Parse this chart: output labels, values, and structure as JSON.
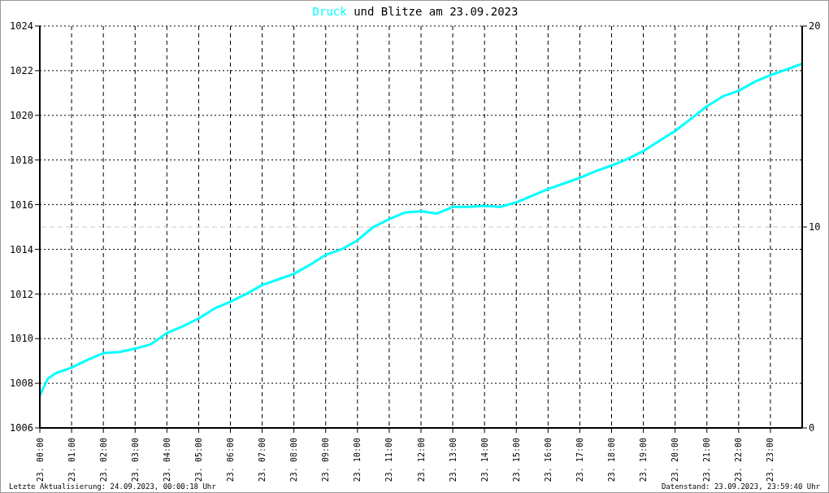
{
  "chart_data": {
    "type": "line",
    "title": "und Blitze am 23.09.2023",
    "annotations": [
      "Letzte Aktualisierung: 24.09.2023, 00:00:18 Uhr",
      "Datenstand: 23.09.2023, 23:59:40 Uhr"
    ],
    "x": [
      "2023-09-23T00:00",
      "2023-09-23T00:15",
      "2023-09-23T00:30",
      "2023-09-23T01:00",
      "2023-09-23T01:30",
      "2023-09-23T02:00",
      "2023-09-23T02:30",
      "2023-09-23T03:00",
      "2023-09-23T03:30",
      "2023-09-23T04:00",
      "2023-09-23T04:30",
      "2023-09-23T05:00",
      "2023-09-23T05:30",
      "2023-09-23T06:00",
      "2023-09-23T06:30",
      "2023-09-23T07:00",
      "2023-09-23T07:30",
      "2023-09-23T08:00",
      "2023-09-23T08:30",
      "2023-09-23T09:00",
      "2023-09-23T09:30",
      "2023-09-23T10:00",
      "2023-09-23T10:30",
      "2023-09-23T11:00",
      "2023-09-23T11:30",
      "2023-09-23T12:00",
      "2023-09-23T12:30",
      "2023-09-23T13:00",
      "2023-09-23T13:30",
      "2023-09-23T14:00",
      "2023-09-23T14:30",
      "2023-09-23T15:00",
      "2023-09-23T15:30",
      "2023-09-23T16:00",
      "2023-09-23T16:30",
      "2023-09-23T17:00",
      "2023-09-23T17:30",
      "2023-09-23T18:00",
      "2023-09-23T18:30",
      "2023-09-23T19:00",
      "2023-09-23T19:30",
      "2023-09-23T20:00",
      "2023-09-23T20:30",
      "2023-09-23T21:00",
      "2023-09-23T21:30",
      "2023-09-23T22:00",
      "2023-09-23T22:30",
      "2023-09-23T23:00",
      "2023-09-23T23:30",
      "2023-09-23T23:59"
    ],
    "series": [
      {
        "name": "Druck",
        "color": "#00ffff",
        "values": [
          1007.45,
          1008.2,
          1008.45,
          1008.7,
          1009.05,
          1009.35,
          1009.4,
          1009.55,
          1009.75,
          1010.25,
          1010.55,
          1010.9,
          1011.35,
          1011.65,
          1012.0,
          1012.4,
          1012.65,
          1012.9,
          1013.3,
          1013.75,
          1014.0,
          1014.4,
          1015.0,
          1015.35,
          1015.65,
          1015.7,
          1015.6,
          1015.9,
          1015.9,
          1015.95,
          1015.9,
          1016.1,
          1016.4,
          1016.7,
          1016.95,
          1017.2,
          1017.5,
          1017.75,
          1018.05,
          1018.4,
          1018.85,
          1019.3,
          1019.85,
          1020.4,
          1020.85,
          1021.1,
          1021.5,
          1021.8,
          1022.05,
          1022.3
        ]
      }
    ],
    "xlim": [
      "2023-09-23T00:00",
      "2023-09-24T00:00"
    ],
    "xticks": [
      {
        "value": "2023-09-23T00:00",
        "label": "23. 00:00"
      },
      {
        "value": "2023-09-23T01:00",
        "label": "23. 01:00"
      },
      {
        "value": "2023-09-23T02:00",
        "label": "23. 02:00"
      },
      {
        "value": "2023-09-23T03:00",
        "label": "23. 03:00"
      },
      {
        "value": "2023-09-23T04:00",
        "label": "23. 04:00"
      },
      {
        "value": "2023-09-23T05:00",
        "label": "23. 05:00"
      },
      {
        "value": "2023-09-23T06:00",
        "label": "23. 06:00"
      },
      {
        "value": "2023-09-23T07:00",
        "label": "23. 07:00"
      },
      {
        "value": "2023-09-23T08:00",
        "label": "23. 08:00"
      },
      {
        "value": "2023-09-23T09:00",
        "label": "23. 09:00"
      },
      {
        "value": "2023-09-23T10:00",
        "label": "23. 10:00"
      },
      {
        "value": "2023-09-23T11:00",
        "label": "23. 11:00"
      },
      {
        "value": "2023-09-23T12:00",
        "label": "23. 12:00"
      },
      {
        "value": "2023-09-23T13:00",
        "label": "23. 13:00"
      },
      {
        "value": "2023-09-23T14:00",
        "label": "23. 14:00"
      },
      {
        "value": "2023-09-23T15:00",
        "label": "23. 15:00"
      },
      {
        "value": "2023-09-23T16:00",
        "label": "23. 16:00"
      },
      {
        "value": "2023-09-23T17:00",
        "label": "23. 17:00"
      },
      {
        "value": "2023-09-23T18:00",
        "label": "23. 18:00"
      },
      {
        "value": "2023-09-23T19:00",
        "label": "23. 19:00"
      },
      {
        "value": "2023-09-23T20:00",
        "label": "23. 20:00"
      },
      {
        "value": "2023-09-23T21:00",
        "label": "23. 21:00"
      },
      {
        "value": "2023-09-23T22:00",
        "label": "23. 22:00"
      },
      {
        "value": "2023-09-23T23:00",
        "label": "23. 23:00"
      }
    ],
    "ylim": [
      1006,
      1024
    ],
    "yticks": [
      1006,
      1008,
      1010,
      1012,
      1014,
      1016,
      1018,
      1020,
      1022,
      1024
    ],
    "y2lim": [
      0,
      20
    ],
    "y2ticks": [
      0,
      10,
      20
    ],
    "ref_lines": [
      {
        "axis": "y2",
        "value": 10,
        "color": "#c8c8c8",
        "line_style": "dashed"
      }
    ],
    "grid": true,
    "legend": "top",
    "marker": "none",
    "line_style": "solid"
  }
}
